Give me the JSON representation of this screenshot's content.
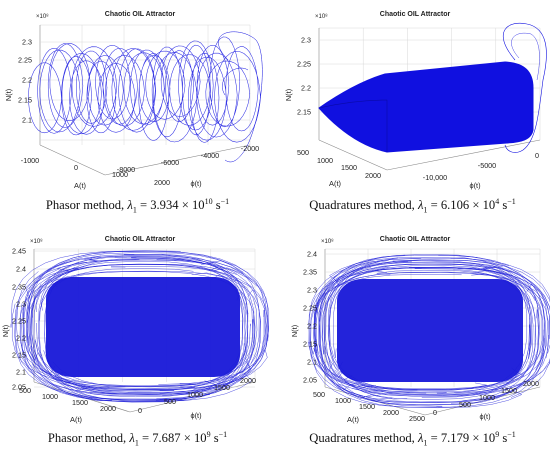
{
  "chart_data": [
    {
      "type": "scatter",
      "title": "Chaotic OIL Attractor",
      "zlabel": "N(t)",
      "xlabel": "A(t)",
      "ylabel": "ϕ(t)",
      "z_exponent": "×10⁸",
      "z_ticks": [
        "2.3",
        "2.25",
        "2.2",
        "2.15",
        "2.1"
      ],
      "x_ticks": [
        "-1000",
        "0",
        "1000",
        "2000"
      ],
      "y_ticks": [
        "-8000",
        "-6000",
        "-4000",
        "-2000"
      ],
      "zlim": [
        2.07,
        2.32
      ],
      "xlim": [
        -1500,
        2600
      ],
      "ylim": [
        -9500,
        -1000
      ],
      "grid": true,
      "series_color": "#1010e0"
    },
    {
      "type": "scatter",
      "title": "Chaotic OIL Attractor",
      "zlabel": "N(t)",
      "xlabel": "A(t)",
      "ylabel": "ϕ(t)",
      "z_exponent": "×10⁸",
      "z_ticks": [
        "2.3",
        "2.25",
        "2.2",
        "2.15"
      ],
      "x_ticks": [
        "500",
        "1000",
        "1500",
        "2000"
      ],
      "y_ticks": [
        "-10,000",
        "-5000",
        "0"
      ],
      "zlim": [
        2.12,
        2.32
      ],
      "xlim": [
        200,
        2100
      ],
      "ylim": [
        -12000,
        1500
      ],
      "grid": true,
      "series_color": "#1010e0"
    },
    {
      "type": "scatter",
      "title": "Chaotic OIL Attractor",
      "zlabel": "N(t)",
      "xlabel": "A(t)",
      "ylabel": "ϕ(t)",
      "z_exponent": "×10⁸",
      "z_ticks": [
        "2.45",
        "2.4",
        "2.35",
        "2.3",
        "2.25",
        "2.2",
        "2.15",
        "2.1",
        "2.05"
      ],
      "x_ticks": [
        "500",
        "1000",
        "1500",
        "2000"
      ],
      "y_ticks": [
        "0",
        "500",
        "1000",
        "1500",
        "2000"
      ],
      "zlim": [
        2.04,
        2.46
      ],
      "xlim": [
        300,
        2500
      ],
      "ylim": [
        -100,
        2100
      ],
      "grid": true,
      "series_color": "#1a1ad8"
    },
    {
      "type": "scatter",
      "title": "Chaotic OIL Attractor",
      "zlabel": "N(t)",
      "xlabel": "A(t)",
      "ylabel": "ϕ(t)",
      "z_exponent": "×10⁸",
      "z_ticks": [
        "2.4",
        "2.35",
        "2.3",
        "2.25",
        "2.2",
        "2.15",
        "2.1",
        "2.05"
      ],
      "x_ticks": [
        "500",
        "1000",
        "1500",
        "2000",
        "2500"
      ],
      "y_ticks": [
        "0",
        "500",
        "1000",
        "1500",
        "2000"
      ],
      "zlim": [
        2.03,
        2.44
      ],
      "xlim": [
        300,
        2700
      ],
      "ylim": [
        -100,
        2200
      ],
      "grid": true,
      "series_color": "#1a1ad8"
    }
  ],
  "captions": [
    {
      "method": "Phasor method, ",
      "lambda": "λ",
      "sub": "1",
      "value": " = 3.934 × 10",
      "exp": "10",
      "unit": " s",
      "unit_exp": "−1"
    },
    {
      "method": "Quadratures method, ",
      "lambda": "λ",
      "sub": "1",
      "value": " = 6.106 × 10",
      "exp": "4",
      "unit": " s",
      "unit_exp": "−1"
    },
    {
      "method": "Phasor method, ",
      "lambda": "λ",
      "sub": "1",
      "value": " = 7.687 × 10",
      "exp": "9",
      "unit": " s",
      "unit_exp": "−1"
    },
    {
      "method": "Quadratures method, ",
      "lambda": "λ",
      "sub": "1",
      "value": " = 7.179 × 10",
      "exp": "9",
      "unit": " s",
      "unit_exp": "−1"
    }
  ]
}
